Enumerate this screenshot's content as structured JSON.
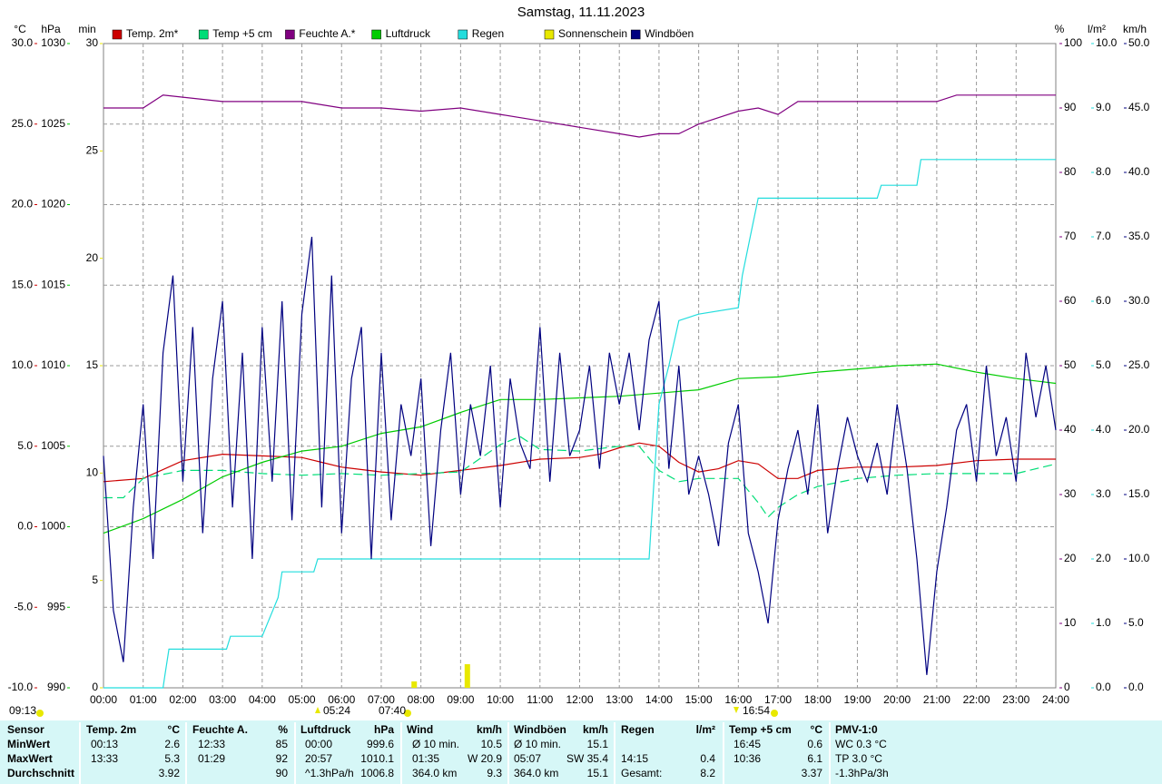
{
  "chart_data": {
    "type": "line",
    "title": "Samstag, 11.11.2023",
    "xlim": [
      0,
      24
    ],
    "xticks": [
      {
        "value": 0,
        "label": "00:00"
      },
      {
        "value": 1,
        "label": "01:00"
      },
      {
        "value": 2,
        "label": "02:00"
      },
      {
        "value": 3,
        "label": "03:00"
      },
      {
        "value": 4,
        "label": "04:00"
      },
      {
        "value": 5,
        "label": "05:00"
      },
      {
        "value": 6,
        "label": "06:00"
      },
      {
        "value": 7,
        "label": "07:00"
      },
      {
        "value": 8,
        "label": "08:00"
      },
      {
        "value": 9,
        "label": "09:00"
      },
      {
        "value": 10,
        "label": "10:00"
      },
      {
        "value": 11,
        "label": "11:00"
      },
      {
        "value": 12,
        "label": "12:00"
      },
      {
        "value": 13,
        "label": "13:00"
      },
      {
        "value": 14,
        "label": "14:00"
      },
      {
        "value": 15,
        "label": "15:00"
      },
      {
        "value": 16,
        "label": "16:00"
      },
      {
        "value": 17,
        "label": "17:00"
      },
      {
        "value": 18,
        "label": "18:00"
      },
      {
        "value": 19,
        "label": "19:00"
      },
      {
        "value": 20,
        "label": "20:00"
      },
      {
        "value": 21,
        "label": "21:00"
      },
      {
        "value": 22,
        "label": "22:00"
      },
      {
        "value": 23,
        "label": "23:00"
      },
      {
        "value": 24,
        "label": "24:00"
      }
    ],
    "y_label": "°C",
    "ylim": [
      -10,
      30
    ],
    "yticks": [
      {
        "value": -10,
        "label": "-10.0"
      },
      {
        "value": -5,
        "label": "-5.0"
      },
      {
        "value": 0,
        "label": "0.0"
      },
      {
        "value": 5,
        "label": "5.0"
      },
      {
        "value": 10,
        "label": "10.0"
      },
      {
        "value": 15,
        "label": "15.0"
      },
      {
        "value": 20,
        "label": "20.0"
      },
      {
        "value": 25,
        "label": "25.0"
      },
      {
        "value": 30,
        "label": "30.0"
      }
    ],
    "y2_label": "hPa",
    "y2lim": [
      990,
      1030
    ],
    "y2ticks": [
      990,
      995,
      1000,
      1005,
      1010,
      1015,
      1020,
      1025,
      1030
    ],
    "y3_label": "min",
    "y3lim": [
      0,
      30
    ],
    "y3ticks": [
      0,
      5,
      10,
      15,
      20,
      25,
      30
    ],
    "y4_label": "%",
    "y4lim": [
      0,
      100
    ],
    "y4ticks": [
      0,
      10,
      20,
      30,
      40,
      50,
      60,
      70,
      80,
      90,
      100
    ],
    "y5_label": "l/m²",
    "y5lim": [
      0,
      10
    ],
    "y5ticks": [
      {
        "value": 0,
        "label": "0.0"
      },
      {
        "value": 1,
        "label": "1.0"
      },
      {
        "value": 2,
        "label": "2.0"
      },
      {
        "value": 3,
        "label": "3.0"
      },
      {
        "value": 4,
        "label": "4.0"
      },
      {
        "value": 5,
        "label": "5.0"
      },
      {
        "value": 6,
        "label": "6.0"
      },
      {
        "value": 7,
        "label": "7.0"
      },
      {
        "value": 8,
        "label": "8.0"
      },
      {
        "value": 9,
        "label": "9.0"
      },
      {
        "value": 10,
        "label": "10.0"
      }
    ],
    "y6_label": "km/h",
    "y6lim": [
      0,
      50
    ],
    "y6ticks": [
      {
        "value": 0,
        "label": "0.0"
      },
      {
        "value": 5,
        "label": "5.0"
      },
      {
        "value": 10,
        "label": "10.0"
      },
      {
        "value": 15,
        "label": "15.0"
      },
      {
        "value": 20,
        "label": "20.0"
      },
      {
        "value": 25,
        "label": "25.0"
      },
      {
        "value": 30,
        "label": "30.0"
      },
      {
        "value": 35,
        "label": "35.0"
      },
      {
        "value": 40,
        "label": "40.0"
      },
      {
        "value": 45,
        "label": "45.0"
      },
      {
        "value": 50,
        "label": "50.0"
      }
    ],
    "grid": true,
    "series": [
      {
        "name": "Temp. 2m*",
        "color": "#cc0000",
        "axis": "y",
        "x": [
          0,
          1,
          2,
          3,
          4,
          5,
          5.5,
          6,
          7,
          8,
          9,
          10,
          11,
          12,
          12.5,
          13,
          13.5,
          14,
          14.5,
          15,
          15.5,
          16,
          16.5,
          17,
          17.5,
          18,
          19,
          20,
          21,
          22,
          23,
          24
        ],
        "values": [
          2.8,
          3.0,
          4.1,
          4.5,
          4.4,
          4.3,
          4.0,
          3.7,
          3.4,
          3.2,
          3.5,
          3.8,
          4.2,
          4.3,
          4.5,
          4.9,
          5.2,
          5.0,
          4.0,
          3.4,
          3.6,
          4.1,
          3.9,
          3.0,
          3.0,
          3.5,
          3.7,
          3.7,
          3.8,
          4.1,
          4.2,
          4.2
        ]
      },
      {
        "name": "Temp +5 cm",
        "color": "#00dd77",
        "axis": "y",
        "dashed": true,
        "x": [
          0,
          0.5,
          1,
          2,
          3,
          4,
          5,
          6,
          7,
          8,
          9,
          10,
          10.5,
          11,
          12,
          13,
          13.5,
          14,
          14.5,
          15,
          16,
          16.5,
          16.75,
          17,
          17.5,
          18,
          19,
          20,
          21,
          22,
          23,
          24
        ],
        "values": [
          1.8,
          1.8,
          3.0,
          3.5,
          3.5,
          3.3,
          3.2,
          3.3,
          3.2,
          3.3,
          3.4,
          5.1,
          5.6,
          4.8,
          4.7,
          5.0,
          5.0,
          3.5,
          2.8,
          3.0,
          3.0,
          1.5,
          0.6,
          1.2,
          2.0,
          2.5,
          3.0,
          3.2,
          3.3,
          3.3,
          3.3,
          3.9
        ]
      },
      {
        "name": "Feuchte A.*",
        "color": "#800080",
        "axis": "y4",
        "x": [
          0,
          1,
          1.5,
          3,
          5,
          6,
          7,
          8,
          9,
          10,
          11,
          12,
          13,
          13.5,
          14,
          14.5,
          15,
          16,
          16.5,
          17,
          17.5,
          18,
          21,
          21.5,
          24
        ],
        "values": [
          90,
          90,
          92,
          91,
          91,
          90,
          90,
          89.5,
          90,
          89,
          88,
          87,
          86,
          85.5,
          86,
          86,
          87.5,
          89.5,
          90,
          89,
          91,
          91,
          91,
          92,
          92
        ]
      },
      {
        "name": "Luftdruck",
        "color": "#00cc00",
        "axis": "y2",
        "x": [
          0,
          1,
          2,
          3,
          4,
          5,
          6,
          7,
          8,
          9,
          10,
          11,
          12,
          13,
          14,
          15,
          16,
          17,
          18,
          19,
          20,
          21,
          22,
          23,
          24
        ],
        "values": [
          999.6,
          1000.5,
          1001.7,
          1003.1,
          1004.0,
          1004.7,
          1005.0,
          1005.8,
          1006.2,
          1007.1,
          1007.9,
          1007.9,
          1008.0,
          1008.1,
          1008.3,
          1008.5,
          1009.2,
          1009.3,
          1009.6,
          1009.8,
          1010.0,
          1010.1,
          1009.6,
          1009.2,
          1008.9
        ]
      },
      {
        "name": "Regen",
        "color": "#22dddd",
        "axis": "y5",
        "x": [
          0,
          1.5,
          1.55,
          1.65,
          3.1,
          3.2,
          4.0,
          4.4,
          4.5,
          5.3,
          5.4,
          9.0,
          13.75,
          13.8,
          14.0,
          14.25,
          14.5,
          15.0,
          16.0,
          16.1,
          16.3,
          16.5,
          19.5,
          19.6,
          20.5,
          20.6,
          24
        ],
        "values": [
          0,
          0,
          0.2,
          0.6,
          0.6,
          0.8,
          0.8,
          1.4,
          1.8,
          1.8,
          2.0,
          2.0,
          2.0,
          2.5,
          4.4,
          5.0,
          5.7,
          5.8,
          5.9,
          6.4,
          7.0,
          7.6,
          7.6,
          7.8,
          7.8,
          8.2,
          8.2
        ]
      },
      {
        "name": "Sonnenschein",
        "color": "#e8e800",
        "axis": "y3",
        "style": "bar",
        "x": [
          7.83,
          9.17
        ],
        "values": [
          0.3,
          1.1
        ]
      },
      {
        "name": "Windböen",
        "color": "#000080",
        "axis": "y6",
        "x": [
          0,
          0.25,
          0.5,
          0.75,
          1,
          1.25,
          1.5,
          1.75,
          2,
          2.25,
          2.5,
          2.75,
          3,
          3.25,
          3.5,
          3.75,
          4,
          4.25,
          4.5,
          4.75,
          5,
          5.25,
          5.5,
          5.75,
          6,
          6.25,
          6.5,
          6.75,
          7,
          7.25,
          7.5,
          7.75,
          8,
          8.25,
          8.5,
          8.75,
          9,
          9.25,
          9.5,
          9.75,
          10,
          10.25,
          10.5,
          10.75,
          11,
          11.25,
          11.5,
          11.75,
          12,
          12.25,
          12.5,
          12.75,
          13,
          13.25,
          13.5,
          13.75,
          14,
          14.25,
          14.5,
          14.75,
          15,
          15.25,
          15.5,
          15.75,
          16,
          16.25,
          16.5,
          16.75,
          17,
          17.25,
          17.5,
          17.75,
          18,
          18.25,
          18.5,
          18.75,
          19,
          19.25,
          19.5,
          19.75,
          20,
          20.25,
          20.5,
          20.75,
          21,
          21.25,
          21.5,
          21.75,
          22,
          22.25,
          22.5,
          22.75,
          23,
          23.25,
          23.5,
          23.75,
          24
        ],
        "values": [
          18,
          6,
          2,
          14,
          22,
          10,
          26,
          32,
          16,
          28,
          12,
          24,
          30,
          14,
          26,
          10,
          28,
          16,
          30,
          13,
          29,
          35,
          14,
          32,
          12,
          24,
          28,
          10,
          26,
          13,
          22,
          18,
          24,
          11,
          20,
          26,
          15,
          22,
          18,
          25,
          14,
          24,
          19,
          17,
          28,
          16,
          26,
          18,
          20,
          25,
          17,
          26,
          22,
          26,
          20,
          27,
          30,
          17,
          25,
          15,
          18,
          15,
          11,
          19,
          22,
          12,
          9,
          5,
          13,
          17,
          20,
          15,
          22,
          12,
          17,
          21,
          18,
          16,
          19,
          15,
          22,
          17,
          10,
          1,
          9,
          14,
          20,
          22,
          16,
          25,
          18,
          21,
          16,
          26,
          21,
          25,
          20
        ]
      }
    ],
    "annotations": [
      "09:13",
      "05:24",
      "07:40",
      "16:54"
    ]
  },
  "summary": {
    "sensor_label": "Sensor",
    "columns": [
      {
        "name": "Temp. 2m",
        "unit": "°C"
      },
      {
        "name": "Feuchte A.",
        "unit": "%"
      },
      {
        "name": "Luftdruck",
        "unit": "hPa"
      },
      {
        "name": "Wind",
        "unit": "km/h"
      },
      {
        "name": "Windböen",
        "unit": "km/h"
      },
      {
        "name": "Regen",
        "unit": "l/m²"
      },
      {
        "name": "Temp +5 cm",
        "unit": "°C"
      },
      {
        "name": "PMV-1:0"
      }
    ],
    "rows": [
      {
        "label": "MinWert",
        "cells": [
          {
            "left": "00:13",
            "right": "2.6"
          },
          {
            "left": "12:33",
            "right": "85"
          },
          {
            "left": "00:00",
            "right": "999.6"
          },
          {
            "left": "Ø 10 min.",
            "right": "10.5"
          },
          {
            "left": "Ø 10 min.",
            "right": "15.1"
          },
          {},
          {
            "left": "16:45",
            "right": "0.6"
          },
          {
            "left": "WC 0.3 °C"
          }
        ]
      },
      {
        "label": "MaxWert",
        "cells": [
          {
            "left": "13:33",
            "right": "5.3"
          },
          {
            "left": "01:29",
            "right": "92"
          },
          {
            "left": "20:57",
            "right": "1010.1"
          },
          {
            "left": "01:35",
            "right": "W 20.9"
          },
          {
            "left": "05:07",
            "right": "SW 35.4"
          },
          {
            "left": "14:15",
            "right": "0.4"
          },
          {
            "left": "10:36",
            "right": "6.1"
          },
          {
            "left": "TP 3.0 °C"
          }
        ]
      },
      {
        "label": "Durchschnitt",
        "cells": [
          {
            "right": "3.92"
          },
          {
            "right": "90"
          },
          {
            "left": "^1.3hPa/h",
            "right": "1006.8"
          },
          {
            "left": "364.0 km",
            "right": "9.3"
          },
          {
            "left": "364.0 km",
            "right": "15.1"
          },
          {
            "left": "Gesamt:",
            "right": "8.2"
          },
          {
            "right": "3.37"
          },
          {
            "left": "-1.3hPa/3h"
          }
        ]
      }
    ]
  }
}
